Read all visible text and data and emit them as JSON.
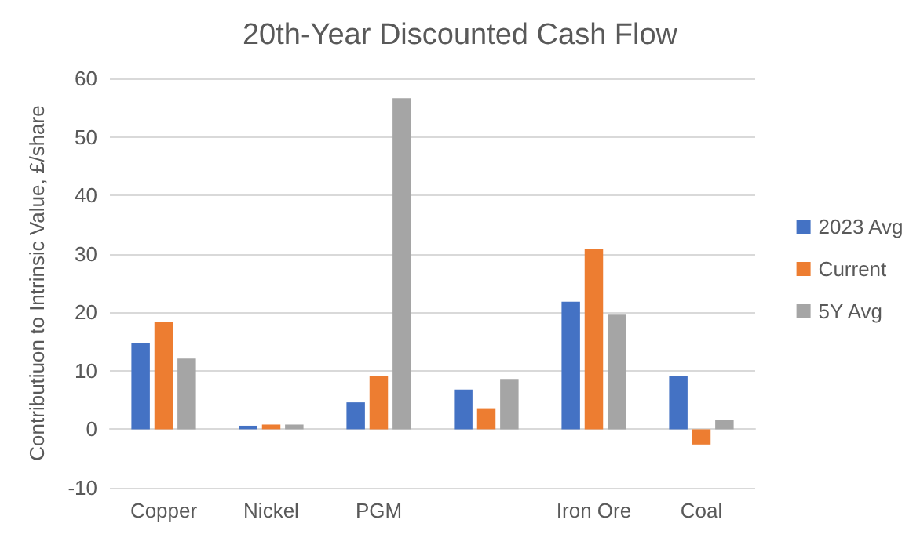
{
  "chart_data": {
    "type": "bar",
    "title": "20th-Year Discounted Cash Flow",
    "ylabel": "Contributiuon to Intrinsic Value, £/share",
    "categories": [
      "Copper",
      "Nickel",
      "PGM",
      null,
      "Iron Ore",
      "Coal"
    ],
    "series": [
      {
        "name": "2023 Avg",
        "color": "#4472c4",
        "values": [
          14.8,
          0.6,
          4.6,
          6.8,
          21.8,
          9.1
        ]
      },
      {
        "name": "Current",
        "color": "#ed7d31",
        "values": [
          18.3,
          0.8,
          9.1,
          3.6,
          30.8,
          -2.6
        ]
      },
      {
        "name": "5Y Avg",
        "color": "#a5a5a5",
        "values": [
          12.1,
          0.8,
          56.6,
          8.6,
          19.6,
          1.6
        ]
      }
    ],
    "ylim": [
      -10,
      60
    ],
    "yticks": [
      -10,
      0,
      10,
      20,
      30,
      40,
      50,
      60
    ],
    "grid": "y",
    "legend": "right"
  }
}
